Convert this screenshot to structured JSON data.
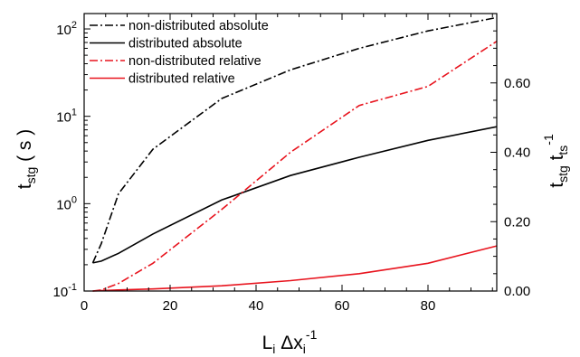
{
  "chart_data": {
    "type": "line",
    "x": [
      2,
      4,
      8,
      16,
      32,
      48,
      64,
      80,
      96
    ],
    "xlim": [
      0,
      96
    ],
    "xticks": [
      0,
      20,
      40,
      60,
      80
    ],
    "xtick_labels": [
      "0",
      "20",
      "40",
      "60",
      "80"
    ],
    "xlabel": {
      "main": "L",
      "sub": "i",
      "mid": " Δx",
      "sub2": "i",
      "sup": "-1"
    },
    "left_axis": {
      "scale": "log",
      "ylim": [
        0.1,
        150
      ],
      "ticks": [
        0.1,
        1,
        10,
        100
      ],
      "tick_labels": [
        {
          "base": "10",
          "exp": "-1"
        },
        {
          "base": "10",
          "exp": "0"
        },
        {
          "base": "10",
          "exp": "1"
        },
        {
          "base": "10",
          "exp": "2"
        }
      ],
      "label": {
        "main": "t",
        "sub": "stg",
        "rest": " ( s )"
      }
    },
    "right_axis": {
      "scale": "linear",
      "ylim": [
        0,
        0.8
      ],
      "ticks": [
        0,
        0.2,
        0.4,
        0.6
      ],
      "tick_labels": [
        "0.00",
        "0.20",
        "0.40",
        "0.60"
      ],
      "label": {
        "main1": "t",
        "sub1": "stg",
        "main2": " t",
        "sub2": "ts",
        "sup2": "-1"
      }
    },
    "legend_position": "top-left",
    "series": [
      {
        "name": "non-distributed absolute",
        "axis": "left",
        "color": "#000000",
        "dash": "dashdot",
        "values": [
          0.21,
          0.35,
          1.3,
          4.2,
          16,
          34,
          60,
          95,
          135
        ]
      },
      {
        "name": "distributed absolute",
        "axis": "left",
        "color": "#000000",
        "dash": "solid",
        "values": [
          0.21,
          0.22,
          0.27,
          0.45,
          1.1,
          2.1,
          3.4,
          5.3,
          7.6
        ]
      },
      {
        "name": "non-distributed relative",
        "axis": "right",
        "color": "#e8141e",
        "dash": "dashdot",
        "values": [
          0.0,
          0.003,
          0.022,
          0.08,
          0.235,
          0.4,
          0.535,
          0.59,
          0.72
        ]
      },
      {
        "name": "distributed relative",
        "axis": "right",
        "color": "#e8141e",
        "dash": "solid",
        "values": [
          0.0,
          0.001,
          0.003,
          0.006,
          0.015,
          0.03,
          0.05,
          0.08,
          0.13
        ]
      }
    ]
  }
}
